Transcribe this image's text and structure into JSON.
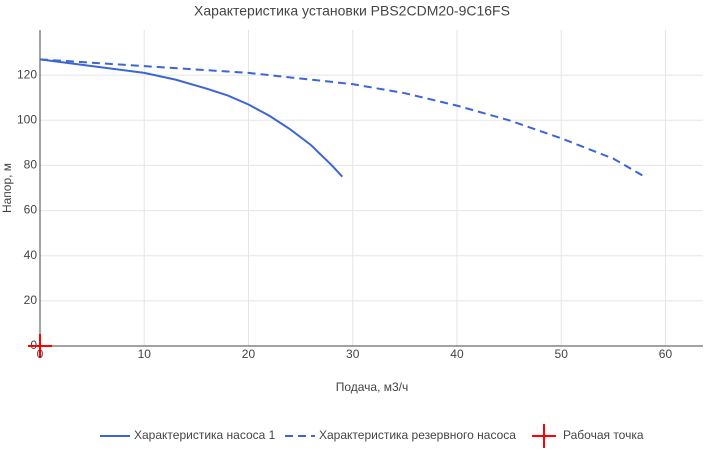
{
  "chart_data": {
    "type": "line",
    "title": "Характеристика установки PBS2CDM20-9C16FS",
    "x_label": "Подача, м3/ч",
    "y_label": "Напор, м",
    "xlim": [
      0,
      63.6
    ],
    "xticks": [
      0,
      10,
      20,
      30,
      40,
      50,
      60
    ],
    "ylim": [
      0,
      140
    ],
    "yticks": [
      0,
      20,
      40,
      60,
      80,
      100,
      120
    ],
    "grid": true,
    "legend": "bottom",
    "series": [
      {
        "name": "Характеристика насоса 1",
        "color": "#3c66d6",
        "mode": "line",
        "dash": false,
        "x": [
          0,
          5,
          10,
          13,
          16,
          18,
          20,
          22,
          24,
          26,
          28,
          29
        ],
        "values": [
          127,
          124,
          121,
          118,
          114,
          111,
          107,
          102,
          96,
          89,
          80,
          75
        ]
      },
      {
        "name": "Характеристика резервного насоса",
        "color": "#3c66d6",
        "mode": "line",
        "dash": true,
        "x": [
          0,
          10,
          20,
          30,
          35,
          40,
          45,
          50,
          55,
          58
        ],
        "values": [
          127,
          124,
          121,
          116,
          112,
          106.5,
          100,
          92,
          83,
          75
        ]
      },
      {
        "name": "Рабочая точка",
        "color": "#ff0000",
        "mode": "marker",
        "dash": false,
        "x": [
          0
        ],
        "values": [
          0
        ]
      }
    ]
  }
}
